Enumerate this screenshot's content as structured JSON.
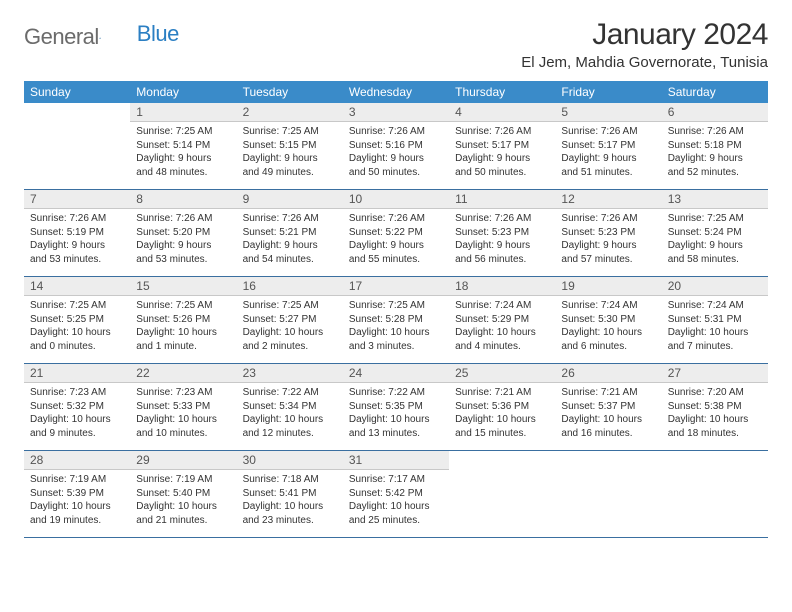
{
  "logo": {
    "text1": "General",
    "text2": "Blue"
  },
  "title": "January 2024",
  "location": "El Jem, Mahdia Governorate, Tunisia",
  "dayHeaders": [
    "Sunday",
    "Monday",
    "Tuesday",
    "Wednesday",
    "Thursday",
    "Friday",
    "Saturday"
  ],
  "colors": {
    "headerBg": "#3a8bc9",
    "headerFg": "#ffffff",
    "dayNumBg": "#ededed",
    "ruleColor": "#3a6fa0",
    "logoGray": "#6b6b6b",
    "logoBlue": "#2b7fc3"
  },
  "weeks": [
    {
      "nums": [
        "",
        "1",
        "2",
        "3",
        "4",
        "5",
        "6"
      ],
      "cells": [
        "",
        "Sunrise: 7:25 AM\nSunset: 5:14 PM\nDaylight: 9 hours and 48 minutes.",
        "Sunrise: 7:25 AM\nSunset: 5:15 PM\nDaylight: 9 hours and 49 minutes.",
        "Sunrise: 7:26 AM\nSunset: 5:16 PM\nDaylight: 9 hours and 50 minutes.",
        "Sunrise: 7:26 AM\nSunset: 5:17 PM\nDaylight: 9 hours and 50 minutes.",
        "Sunrise: 7:26 AM\nSunset: 5:17 PM\nDaylight: 9 hours and 51 minutes.",
        "Sunrise: 7:26 AM\nSunset: 5:18 PM\nDaylight: 9 hours and 52 minutes."
      ]
    },
    {
      "nums": [
        "7",
        "8",
        "9",
        "10",
        "11",
        "12",
        "13"
      ],
      "cells": [
        "Sunrise: 7:26 AM\nSunset: 5:19 PM\nDaylight: 9 hours and 53 minutes.",
        "Sunrise: 7:26 AM\nSunset: 5:20 PM\nDaylight: 9 hours and 53 minutes.",
        "Sunrise: 7:26 AM\nSunset: 5:21 PM\nDaylight: 9 hours and 54 minutes.",
        "Sunrise: 7:26 AM\nSunset: 5:22 PM\nDaylight: 9 hours and 55 minutes.",
        "Sunrise: 7:26 AM\nSunset: 5:23 PM\nDaylight: 9 hours and 56 minutes.",
        "Sunrise: 7:26 AM\nSunset: 5:23 PM\nDaylight: 9 hours and 57 minutes.",
        "Sunrise: 7:25 AM\nSunset: 5:24 PM\nDaylight: 9 hours and 58 minutes."
      ]
    },
    {
      "nums": [
        "14",
        "15",
        "16",
        "17",
        "18",
        "19",
        "20"
      ],
      "cells": [
        "Sunrise: 7:25 AM\nSunset: 5:25 PM\nDaylight: 10 hours and 0 minutes.",
        "Sunrise: 7:25 AM\nSunset: 5:26 PM\nDaylight: 10 hours and 1 minute.",
        "Sunrise: 7:25 AM\nSunset: 5:27 PM\nDaylight: 10 hours and 2 minutes.",
        "Sunrise: 7:25 AM\nSunset: 5:28 PM\nDaylight: 10 hours and 3 minutes.",
        "Sunrise: 7:24 AM\nSunset: 5:29 PM\nDaylight: 10 hours and 4 minutes.",
        "Sunrise: 7:24 AM\nSunset: 5:30 PM\nDaylight: 10 hours and 6 minutes.",
        "Sunrise: 7:24 AM\nSunset: 5:31 PM\nDaylight: 10 hours and 7 minutes."
      ]
    },
    {
      "nums": [
        "21",
        "22",
        "23",
        "24",
        "25",
        "26",
        "27"
      ],
      "cells": [
        "Sunrise: 7:23 AM\nSunset: 5:32 PM\nDaylight: 10 hours and 9 minutes.",
        "Sunrise: 7:23 AM\nSunset: 5:33 PM\nDaylight: 10 hours and 10 minutes.",
        "Sunrise: 7:22 AM\nSunset: 5:34 PM\nDaylight: 10 hours and 12 minutes.",
        "Sunrise: 7:22 AM\nSunset: 5:35 PM\nDaylight: 10 hours and 13 minutes.",
        "Sunrise: 7:21 AM\nSunset: 5:36 PM\nDaylight: 10 hours and 15 minutes.",
        "Sunrise: 7:21 AM\nSunset: 5:37 PM\nDaylight: 10 hours and 16 minutes.",
        "Sunrise: 7:20 AM\nSunset: 5:38 PM\nDaylight: 10 hours and 18 minutes."
      ]
    },
    {
      "nums": [
        "28",
        "29",
        "30",
        "31",
        "",
        "",
        ""
      ],
      "cells": [
        "Sunrise: 7:19 AM\nSunset: 5:39 PM\nDaylight: 10 hours and 19 minutes.",
        "Sunrise: 7:19 AM\nSunset: 5:40 PM\nDaylight: 10 hours and 21 minutes.",
        "Sunrise: 7:18 AM\nSunset: 5:41 PM\nDaylight: 10 hours and 23 minutes.",
        "Sunrise: 7:17 AM\nSunset: 5:42 PM\nDaylight: 10 hours and 25 minutes.",
        "",
        "",
        ""
      ]
    }
  ]
}
